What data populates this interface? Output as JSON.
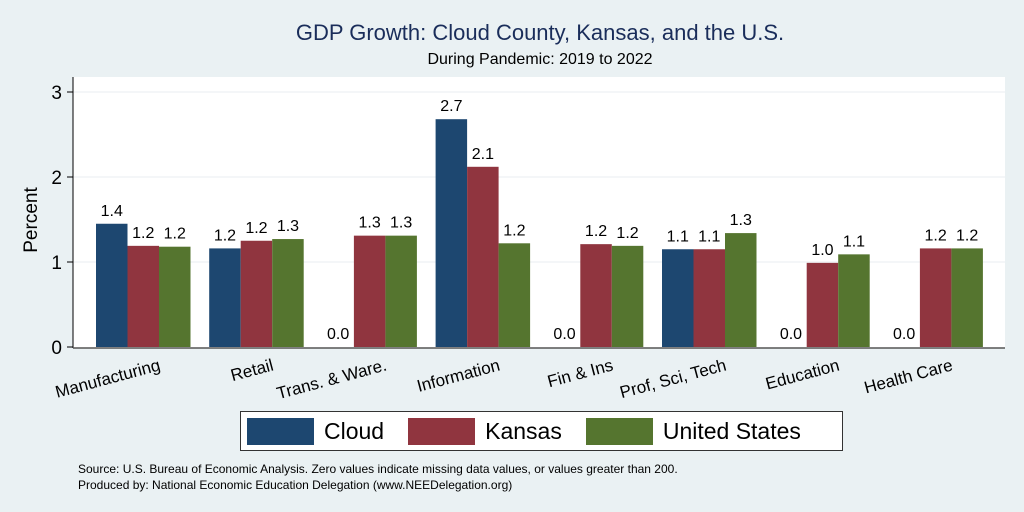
{
  "chart_data": {
    "type": "bar",
    "title": "GDP Growth: Cloud County, Kansas, and the U.S.",
    "subtitle": "During Pandemic: 2019 to 2022",
    "xlabel": "",
    "ylabel": "Percent",
    "ylim": [
      0,
      3
    ],
    "yticks": [
      0,
      1,
      2,
      3
    ],
    "grid": true,
    "legend_position": "bottom",
    "categories": [
      "Manufacturing",
      "Retail",
      "Trans. & Ware.",
      "Information",
      "Fin & Ins",
      "Prof, Sci, Tech",
      "Education",
      "Health Care"
    ],
    "series": [
      {
        "name": "Cloud",
        "color": "#1d4770",
        "values": [
          1.45,
          1.16,
          0.0,
          2.68,
          0.0,
          1.15,
          0.0,
          0.0
        ],
        "labels": [
          "1.4",
          "1.2",
          "0.0",
          "2.7",
          "0.0",
          "1.1",
          "0.0",
          "0.0"
        ]
      },
      {
        "name": "Kansas",
        "color": "#90353f",
        "values": [
          1.19,
          1.25,
          1.31,
          2.12,
          1.21,
          1.15,
          0.99,
          1.16
        ],
        "labels": [
          "1.2",
          "1.2",
          "1.3",
          "2.1",
          "1.2",
          "1.1",
          "1.0",
          "1.2"
        ]
      },
      {
        "name": "United States",
        "color": "#55752f",
        "values": [
          1.18,
          1.27,
          1.31,
          1.22,
          1.19,
          1.34,
          1.09,
          1.16
        ],
        "labels": [
          "1.2",
          "1.3",
          "1.3",
          "1.2",
          "1.2",
          "1.3",
          "1.1",
          "1.2"
        ]
      }
    ],
    "notes": [
      "Source: U.S. Bureau of Economic Analysis. Zero values indicate missing data values, or values greater than 200.",
      "Produced by: National Economic Education Delegation (www.NEEDelegation.org)"
    ]
  }
}
